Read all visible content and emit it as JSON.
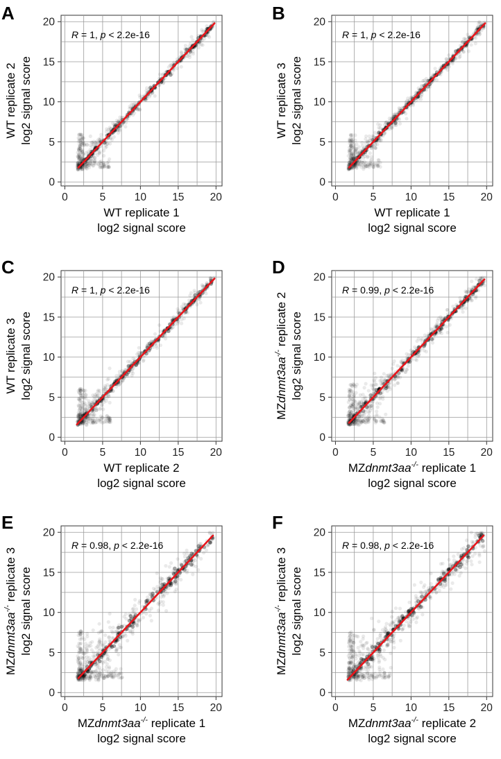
{
  "figure": {
    "panels": [
      {
        "letter": "A",
        "annotation": {
          "r_label": "R",
          "r_text": " = 1, ",
          "p_label": "p",
          "p_text": " < 2.2e-16"
        },
        "xlabel": {
          "line1_pre": "WT replicate 1",
          "line1_italic": "",
          "line1_sup": "",
          "line1_post": "",
          "line2": "log2 signal score"
        },
        "ylabel": {
          "line1_pre": "WT replicate 2",
          "line1_italic": "",
          "line1_sup": "",
          "line1_post": "",
          "line2": "log2 signal score"
        },
        "spread": 0.45
      },
      {
        "letter": "B",
        "annotation": {
          "r_label": "R",
          "r_text": " = 1, ",
          "p_label": "p",
          "p_text": " < 2.2e-16"
        },
        "xlabel": {
          "line1_pre": "WT replicate 1",
          "line1_italic": "",
          "line1_sup": "",
          "line1_post": "",
          "line2": "log2 signal score"
        },
        "ylabel": {
          "line1_pre": "WT replicate 3",
          "line1_italic": "",
          "line1_sup": "",
          "line1_post": "",
          "line2": "log2 signal score"
        },
        "spread": 0.45
      },
      {
        "letter": "C",
        "annotation": {
          "r_label": "R",
          "r_text": " = 1, ",
          "p_label": "p",
          "p_text": " < 2.2e-16"
        },
        "xlabel": {
          "line1_pre": "WT replicate 2",
          "line1_italic": "",
          "line1_sup": "",
          "line1_post": "",
          "line2": "log2 signal score"
        },
        "ylabel": {
          "line1_pre": "WT replicate 3",
          "line1_italic": "",
          "line1_sup": "",
          "line1_post": "",
          "line2": "log2 signal score"
        },
        "spread": 0.5
      },
      {
        "letter": "D",
        "annotation": {
          "r_label": "R",
          "r_text": " = 0.99, ",
          "p_label": "p",
          "p_text": " < 2.2e-16"
        },
        "xlabel": {
          "line1_pre": "MZ",
          "line1_italic": "dnmt3aa",
          "line1_sup": "-/-",
          "line1_post": " replicate 1",
          "line2": "log2 signal score"
        },
        "ylabel": {
          "line1_pre": "MZ",
          "line1_italic": "dnmt3aa",
          "line1_sup": "-/-",
          "line1_post": " replicate 2",
          "line2": "log2 signal score"
        },
        "spread": 0.7
      },
      {
        "letter": "E",
        "annotation": {
          "r_label": "R",
          "r_text": " = 0.98, ",
          "p_label": "p",
          "p_text": " < 2.2e-16"
        },
        "xlabel": {
          "line1_pre": "MZ",
          "line1_italic": "dnmt3aa",
          "line1_sup": "-/-",
          "line1_post": " replicate 1",
          "line2": "log2 signal score"
        },
        "ylabel": {
          "line1_pre": "MZ",
          "line1_italic": "dnmt3aa",
          "line1_sup": "-/-",
          "line1_post": " replicate 3",
          "line2": "log2 signal score"
        },
        "spread": 1.05
      },
      {
        "letter": "F",
        "annotation": {
          "r_label": "R",
          "r_text": " = 0.98, ",
          "p_label": "p",
          "p_text": " < 2.2e-16"
        },
        "xlabel": {
          "line1_pre": "MZ",
          "line1_italic": "dnmt3aa",
          "line1_sup": "-/-",
          "line1_post": " replicate 2",
          "line2": "log2 signal score"
        },
        "ylabel": {
          "line1_pre": "MZ",
          "line1_italic": "dnmt3aa",
          "line1_sup": "-/-",
          "line1_post": " replicate 3",
          "line2": "log2 signal score"
        },
        "spread": 1.0
      }
    ]
  },
  "chart_data": [
    {
      "type": "scatter",
      "panel": "A",
      "title": "",
      "xlabel": "WT replicate 1 log2 signal score",
      "ylabel": "WT replicate 2 log2 signal score",
      "xlim": [
        -0.5,
        20.8
      ],
      "ylim": [
        -0.5,
        20.8
      ],
      "xticks": [
        0,
        5,
        10,
        15,
        20
      ],
      "yticks": [
        0,
        5,
        10,
        15,
        20
      ],
      "grid": true,
      "fit_line": {
        "color": "#e8151b",
        "x": [
          1.8,
          19.8
        ],
        "y": [
          1.8,
          19.8
        ]
      },
      "R": 1,
      "p": "< 2.2e-16"
    },
    {
      "type": "scatter",
      "panel": "B",
      "title": "",
      "xlabel": "WT replicate 1 log2 signal score",
      "ylabel": "WT replicate 3 log2 signal score",
      "xlim": [
        -0.5,
        20.8
      ],
      "ylim": [
        -0.5,
        20.8
      ],
      "xticks": [
        0,
        5,
        10,
        15,
        20
      ],
      "yticks": [
        0,
        5,
        10,
        15,
        20
      ],
      "grid": true,
      "fit_line": {
        "color": "#e8151b",
        "x": [
          1.8,
          19.8
        ],
        "y": [
          1.8,
          19.8
        ]
      },
      "R": 1,
      "p": "< 2.2e-16"
    },
    {
      "type": "scatter",
      "panel": "C",
      "title": "",
      "xlabel": "WT replicate 2 log2 signal score",
      "ylabel": "WT replicate 3 log2 signal score",
      "xlim": [
        -0.5,
        20.8
      ],
      "ylim": [
        -0.5,
        20.8
      ],
      "xticks": [
        0,
        5,
        10,
        15,
        20
      ],
      "yticks": [
        0,
        5,
        10,
        15,
        20
      ],
      "grid": true,
      "fit_line": {
        "color": "#e8151b",
        "x": [
          1.6,
          19.8
        ],
        "y": [
          1.6,
          19.8
        ]
      },
      "R": 1,
      "p": "< 2.2e-16"
    },
    {
      "type": "scatter",
      "panel": "D",
      "title": "",
      "xlabel": "MZdnmt3aa-/- replicate 1 log2 signal score",
      "ylabel": "MZdnmt3aa-/- replicate 2 log2 signal score",
      "xlim": [
        -0.5,
        20.8
      ],
      "ylim": [
        -0.5,
        20.8
      ],
      "xticks": [
        0,
        5,
        10,
        15,
        20
      ],
      "yticks": [
        0,
        5,
        10,
        15,
        20
      ],
      "grid": true,
      "fit_line": {
        "color": "#e8151b",
        "x": [
          1.8,
          19.7
        ],
        "y": [
          1.8,
          19.7
        ]
      },
      "R": 0.99,
      "p": "< 2.2e-16"
    },
    {
      "type": "scatter",
      "panel": "E",
      "title": "",
      "xlabel": "MZdnmt3aa-/- replicate 1 log2 signal score",
      "ylabel": "MZdnmt3aa-/- replicate 3 log2 signal score",
      "xlim": [
        -0.5,
        20.8
      ],
      "ylim": [
        -0.5,
        20.8
      ],
      "xticks": [
        0,
        5,
        10,
        15,
        20
      ],
      "yticks": [
        0,
        5,
        10,
        15,
        20
      ],
      "grid": true,
      "fit_line": {
        "color": "#e8151b",
        "x": [
          1.8,
          19.6
        ],
        "y": [
          1.8,
          19.6
        ]
      },
      "R": 0.98,
      "p": "< 2.2e-16"
    },
    {
      "type": "scatter",
      "panel": "F",
      "title": "",
      "xlabel": "MZdnmt3aa-/- replicate 2 log2 signal score",
      "ylabel": "MZdnmt3aa-/- replicate 3 log2 signal score",
      "xlim": [
        -0.5,
        20.8
      ],
      "ylim": [
        -0.5,
        20.8
      ],
      "xticks": [
        0,
        5,
        10,
        15,
        20
      ],
      "yticks": [
        0,
        5,
        10,
        15,
        20
      ],
      "grid": true,
      "fit_line": {
        "color": "#e8151b",
        "x": [
          1.6,
          19.6
        ],
        "y": [
          1.6,
          19.6
        ]
      },
      "R": 0.98,
      "p": "< 2.2e-16"
    }
  ],
  "colors": {
    "fit_line": "#e8151b",
    "points": "#111111",
    "grid": "#9a9a9a"
  }
}
